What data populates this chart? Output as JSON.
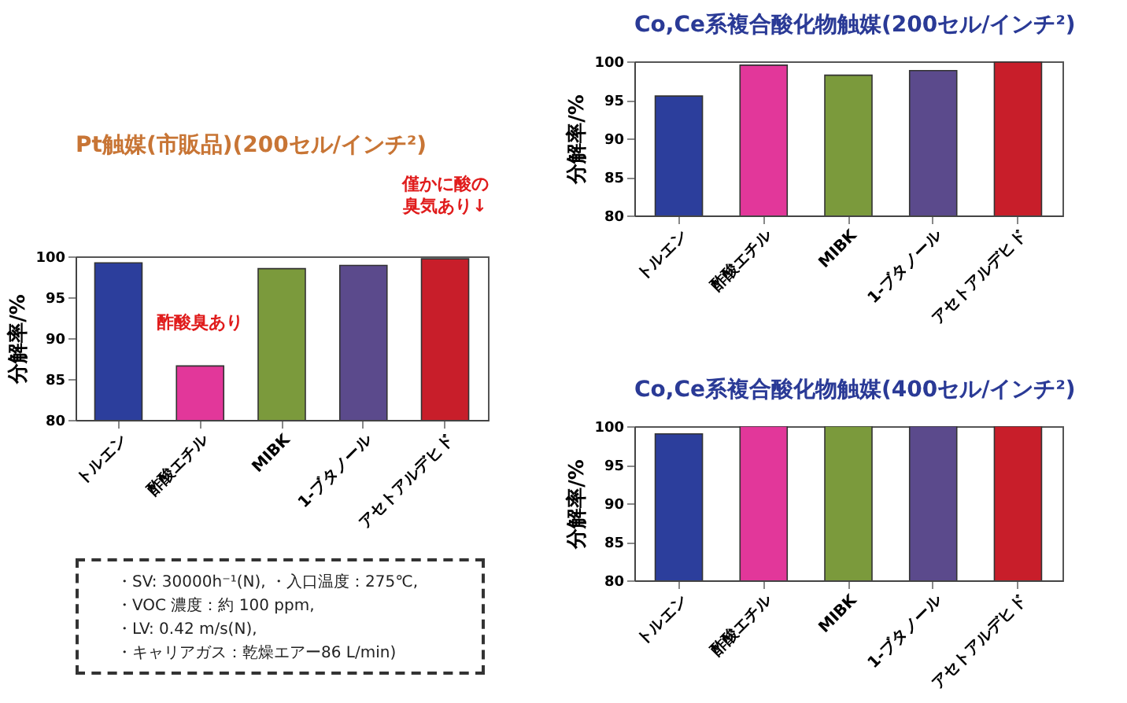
{
  "chart_data": [
    {
      "type": "bar",
      "title": "Pt触媒(市販品)(200セル/インチ²)",
      "ylabel": "分解率/%",
      "categories": [
        "トルエン",
        "酢酸エチル",
        "MIBK",
        "1-ブタノール",
        "アセトアルデヒド"
      ],
      "values": [
        99.2,
        86.6,
        98.5,
        98.9,
        99.7
      ],
      "colors": [
        "#2c3e9c",
        "#e2379a",
        "#7b9a3c",
        "#5b4a8c",
        "#c81e2a"
      ],
      "ylim": [
        80,
        100
      ],
      "yticks": [
        80,
        85,
        90,
        95,
        100
      ],
      "annotations": [
        {
          "text": "酢酸臭あり",
          "x": "酢酸エチル",
          "y": 86.6
        },
        {
          "text": "僅かに酸の臭気あり↓",
          "x": "アセトアルデヒド",
          "y": 99.7
        }
      ]
    },
    {
      "type": "bar",
      "title": "Co,Ce系複合酸化物触媒(200セル/インチ²)",
      "ylabel": "分解率/%",
      "categories": [
        "トルエン",
        "酢酸エチル",
        "MIBK",
        "1-ブタノール",
        "アセトアルデヒド"
      ],
      "values": [
        95.5,
        99.5,
        98.2,
        98.8,
        99.9
      ],
      "colors": [
        "#2c3e9c",
        "#e2379a",
        "#7b9a3c",
        "#5b4a8c",
        "#c81e2a"
      ],
      "ylim": [
        80,
        100
      ],
      "yticks": [
        80,
        85,
        90,
        95,
        100
      ]
    },
    {
      "type": "bar",
      "title": "Co,Ce系複合酸化物触媒(400セル/インチ²)",
      "ylabel": "分解率/%",
      "categories": [
        "トルエン",
        "酢酸エチル",
        "MIBK",
        "1-ブタノール",
        "アセトアルデヒド"
      ],
      "values": [
        99.0,
        100,
        100,
        100,
        100
      ],
      "colors": [
        "#2c3e9c",
        "#e2379a",
        "#7b9a3c",
        "#5b4a8c",
        "#c81e2a"
      ],
      "ylim": [
        80,
        100
      ],
      "yticks": [
        80,
        85,
        90,
        95,
        100
      ]
    },
    {
      "type": "other",
      "annotations": [
        "・SV: 30000h⁻¹(N), ・入口温度：275℃,",
        "・VOC 濃度：約 100 ppm,",
        "・LV: 0.42 m/s(N),",
        "・キャリアガス：乾燥エアー86 L/min)"
      ]
    }
  ]
}
